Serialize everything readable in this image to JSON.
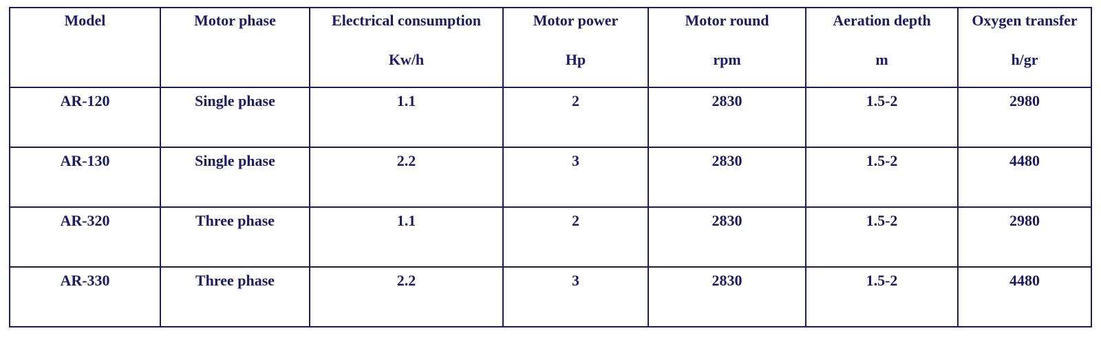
{
  "table": {
    "headers": [
      {
        "label": "Model",
        "unit": ""
      },
      {
        "label": "Motor phase",
        "unit": ""
      },
      {
        "label": "Electrical consumption",
        "unit": "Kw/h"
      },
      {
        "label": "Motor power",
        "unit": "Hp"
      },
      {
        "label": "Motor round",
        "unit": "rpm"
      },
      {
        "label": "Aeration depth",
        "unit": "m"
      },
      {
        "label": "Oxygen transfer",
        "unit": "h/gr"
      }
    ],
    "rows": [
      [
        "AR-120",
        "Single phase",
        "1.1",
        "2",
        "2830",
        "1.5-2",
        "2980"
      ],
      [
        "AR-130",
        "Single phase",
        "2.2",
        "3",
        "2830",
        "1.5-2",
        "4480"
      ],
      [
        "AR-320",
        "Three phase",
        "1.1",
        "2",
        "2830",
        "1.5-2",
        "2980"
      ],
      [
        "AR-330",
        "Three phase",
        "2.2",
        "3",
        "2830",
        "1.5-2",
        "4480"
      ]
    ]
  },
  "colors": {
    "text": "#1a1a6e",
    "border": "#1a1a6e",
    "background": "#ffffff"
  }
}
